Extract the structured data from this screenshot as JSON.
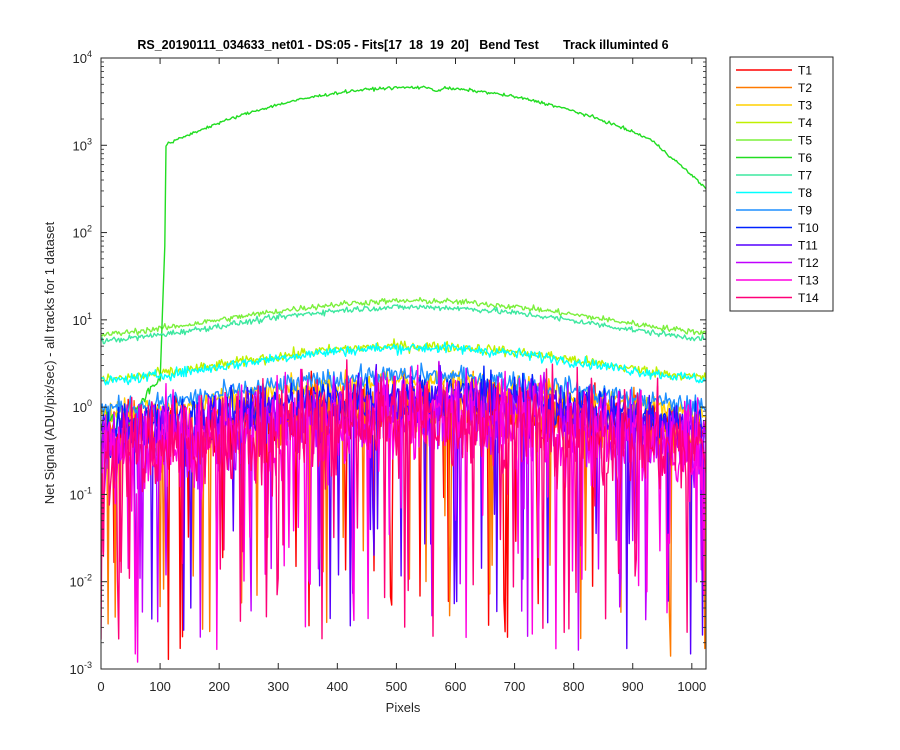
{
  "chart_data": {
    "type": "line",
    "title": "RS_20190111_034633_net01 - DS:05 - Fits[17  18  19  20]   Bend Test       Track illuminted 6",
    "xlabel": "Pixels",
    "ylabel": "Net Signal (ADU/pix/sec) - all tracks for 1 dataset",
    "y_scale": "log",
    "xlim": [
      0,
      1024
    ],
    "ylim": [
      0.001,
      10000
    ],
    "x_ticks": [
      0,
      100,
      200,
      300,
      400,
      500,
      600,
      700,
      800,
      900,
      1000
    ],
    "y_ticks": [
      {
        "value": 0.001,
        "base": "10",
        "exp": "-3"
      },
      {
        "value": 0.01,
        "base": "10",
        "exp": "-2"
      },
      {
        "value": 0.1,
        "base": "10",
        "exp": "-1"
      },
      {
        "value": 1,
        "base": "10",
        "exp": "0"
      },
      {
        "value": 10,
        "base": "10",
        "exp": "1"
      },
      {
        "value": 100,
        "base": "10",
        "exp": "2"
      },
      {
        "value": 1000,
        "base": "10",
        "exp": "3"
      },
      {
        "value": 10000,
        "base": "10",
        "exp": "4"
      }
    ],
    "grid": false,
    "legend_position": "outside-right-top",
    "series": [
      {
        "name": "T1",
        "color": "#ff0000",
        "peak": 1.0,
        "noise": 0.45
      },
      {
        "name": "T2",
        "color": "#ff7a00",
        "peak": 1.1,
        "noise": 0.4
      },
      {
        "name": "T3",
        "color": "#ffd000",
        "peak": 2.0,
        "noise": 0.15
      },
      {
        "name": "T4",
        "color": "#c0f000",
        "peak": 5.0,
        "noise": 0.07
      },
      {
        "name": "T5",
        "color": "#7cf03c",
        "peak": 16.5,
        "noise": 0.04
      },
      {
        "name": "T6",
        "color": "#22dd22",
        "peak": 4600,
        "noise": 0.02
      },
      {
        "name": "T7",
        "color": "#3de8a0",
        "peak": 14.0,
        "noise": 0.04
      },
      {
        "name": "T8",
        "color": "#00ffff",
        "peak": 4.8,
        "noise": 0.07
      },
      {
        "name": "T9",
        "color": "#1e8fff",
        "peak": 2.3,
        "noise": 0.14
      },
      {
        "name": "T10",
        "color": "#0022ff",
        "peak": 1.4,
        "noise": 0.3
      },
      {
        "name": "T11",
        "color": "#5500ff",
        "peak": 1.2,
        "noise": 0.35
      },
      {
        "name": "T12",
        "color": "#c000ff",
        "peak": 0.9,
        "noise": 0.55
      },
      {
        "name": "T13",
        "color": "#ff00e0",
        "peak": 0.75,
        "noise": 0.7
      },
      {
        "name": "T14",
        "color": "#ff0078",
        "peak": 0.75,
        "noise": 0.7
      }
    ]
  }
}
